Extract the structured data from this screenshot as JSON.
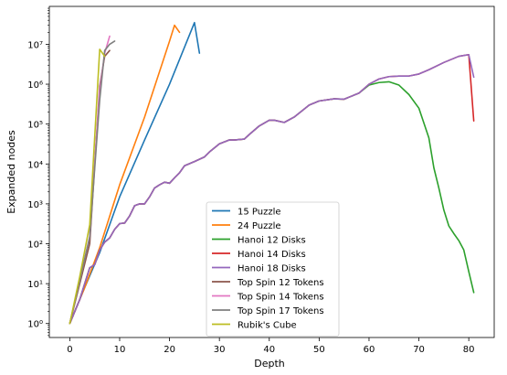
{
  "chart_data": {
    "type": "line",
    "title": "",
    "xlabel": "Depth",
    "ylabel": "Expanded nodes",
    "xlim": [
      -4.1,
      85.1
    ],
    "ylim_log10": [
      -0.35,
      7.95
    ],
    "yscale": "log",
    "x_ticks": [
      0,
      10,
      20,
      30,
      40,
      50,
      60,
      70,
      80
    ],
    "y_ticks": [
      {
        "exp": 0,
        "label": "10⁰"
      },
      {
        "exp": 1,
        "label": "10¹"
      },
      {
        "exp": 2,
        "label": "10²"
      },
      {
        "exp": 3,
        "label": "10³"
      },
      {
        "exp": 4,
        "label": "10⁴"
      },
      {
        "exp": 5,
        "label": "10⁵"
      },
      {
        "exp": 6,
        "label": "10⁶"
      },
      {
        "exp": 7,
        "label": "10⁷"
      }
    ],
    "legend_position": "lower-center",
    "series": [
      {
        "name": "15 Puzzle",
        "color": "#1f77b4",
        "x": [
          0,
          3,
          6,
          10,
          15,
          20,
          25,
          26
        ],
        "y": [
          1,
          8,
          60,
          1500,
          40000,
          1000000,
          35000000,
          6000000
        ]
      },
      {
        "name": "24 Puzzle",
        "color": "#ff7f0e",
        "x": [
          0,
          3,
          6,
          10,
          15,
          20,
          21,
          22
        ],
        "y": [
          1,
          8,
          80,
          3000,
          150000,
          12000000,
          30000000,
          20000000
        ]
      },
      {
        "name": "Hanoi 12 Disks",
        "color": "#2ca02c",
        "x": [
          0,
          2,
          4,
          5,
          6,
          7,
          8,
          9,
          10,
          11,
          12,
          13,
          14,
          15,
          16,
          17,
          18,
          19,
          20,
          21,
          22,
          23,
          25,
          27,
          28,
          30,
          32,
          33,
          35,
          36,
          38,
          40,
          41,
          43,
          45,
          48,
          50,
          53,
          55,
          58,
          60,
          62,
          64,
          66,
          68,
          70,
          72,
          73,
          74,
          75,
          76,
          77,
          78,
          79,
          80,
          81
        ],
        "y": [
          1,
          4,
          25,
          30,
          70,
          110,
          140,
          230,
          320,
          330,
          500,
          900,
          1000,
          1000,
          1500,
          2500,
          3000,
          3500,
          3300,
          4500,
          6000,
          9000,
          11500,
          15000,
          20000,
          32000,
          40000,
          40000,
          42000,
          55000,
          90000,
          125000,
          125000,
          110000,
          150000,
          300000,
          380000,
          430000,
          420000,
          600000,
          950000,
          1100000,
          1150000,
          950000,
          550000,
          250000,
          45000,
          8000,
          2500,
          700,
          280,
          180,
          120,
          70,
          20,
          6
        ]
      },
      {
        "name": "Hanoi 14 Disks",
        "color": "#d62728",
        "x": [
          0,
          2,
          4,
          5,
          6,
          7,
          8,
          9,
          10,
          11,
          12,
          13,
          14,
          15,
          16,
          17,
          18,
          19,
          20,
          21,
          22,
          23,
          25,
          27,
          28,
          30,
          32,
          33,
          35,
          36,
          38,
          40,
          41,
          43,
          45,
          48,
          50,
          53,
          55,
          58,
          60,
          62,
          64,
          66,
          68,
          70,
          72,
          75,
          78,
          80,
          81
        ],
        "y": [
          1,
          4,
          25,
          30,
          70,
          110,
          140,
          230,
          320,
          330,
          500,
          900,
          1000,
          1000,
          1500,
          2500,
          3000,
          3500,
          3300,
          4500,
          6000,
          9000,
          11500,
          15000,
          20000,
          32000,
          40000,
          40000,
          42000,
          55000,
          90000,
          125000,
          125000,
          110000,
          150000,
          300000,
          380000,
          430000,
          420000,
          600000,
          1000000,
          1350000,
          1550000,
          1600000,
          1600000,
          1800000,
          2300000,
          3500000,
          5000000,
          5500000,
          120000
        ]
      },
      {
        "name": "Hanoi 18 Disks",
        "color": "#9467bd",
        "x": [
          0,
          2,
          4,
          5,
          6,
          7,
          8,
          9,
          10,
          11,
          12,
          13,
          14,
          15,
          16,
          17,
          18,
          19,
          20,
          21,
          22,
          23,
          25,
          27,
          28,
          30,
          32,
          33,
          35,
          36,
          38,
          40,
          41,
          43,
          45,
          48,
          50,
          53,
          55,
          58,
          60,
          62,
          64,
          66,
          68,
          70,
          72,
          75,
          78,
          80,
          81
        ],
        "y": [
          1,
          4,
          25,
          30,
          70,
          110,
          140,
          230,
          320,
          330,
          500,
          900,
          1000,
          1000,
          1500,
          2500,
          3000,
          3500,
          3300,
          4500,
          6000,
          9000,
          11500,
          15000,
          20000,
          32000,
          40000,
          40000,
          42000,
          55000,
          90000,
          125000,
          125000,
          110000,
          150000,
          300000,
          380000,
          430000,
          420000,
          600000,
          1000000,
          1350000,
          1550000,
          1600000,
          1600000,
          1800000,
          2300000,
          3500000,
          5000000,
          5500000,
          1500000
        ]
      },
      {
        "name": "Top Spin 12 Tokens",
        "color": "#8c564b",
        "x": [
          0,
          2,
          4,
          6,
          7,
          8
        ],
        "y": [
          1,
          10,
          100,
          900000,
          5000000,
          7000000
        ]
      },
      {
        "name": "Top Spin 14 Tokens",
        "color": "#e377c2",
        "x": [
          0,
          2,
          4,
          6,
          7,
          8
        ],
        "y": [
          1,
          12,
          150,
          700000,
          6000000,
          16000000
        ]
      },
      {
        "name": "Top Spin 17 Tokens",
        "color": "#7f7f7f",
        "x": [
          0,
          2,
          4,
          6,
          7,
          8,
          9
        ],
        "y": [
          1,
          12,
          150,
          400000,
          7000000,
          10000000,
          12000000
        ]
      },
      {
        "name": "Rubik's Cube",
        "color": "#bcbd22",
        "x": [
          0,
          2,
          4,
          6,
          7
        ],
        "y": [
          1,
          15,
          300,
          7500000,
          5000000
        ]
      }
    ]
  }
}
